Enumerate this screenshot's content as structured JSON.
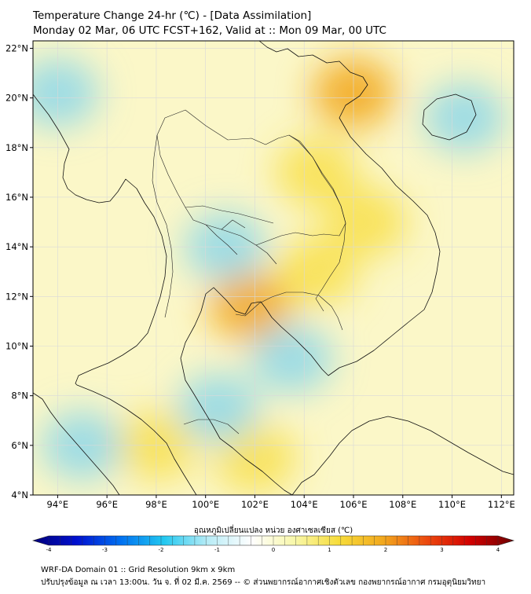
{
  "header": {
    "title": "Temperature Change 24-hr (℃) - [Data Assimilation]",
    "subtitle": "Monday 02 Mar, 06 UTC FCST+162, Valid at :: Mon 09 Mar, 00 UTC"
  },
  "map": {
    "lat_ticks": [
      "22°N",
      "20°N",
      "18°N",
      "16°N",
      "14°N",
      "12°N",
      "10°N",
      "8°N",
      "6°N",
      "4°N"
    ],
    "lon_ticks": [
      "94°E",
      "96°E",
      "98°E",
      "100°E",
      "102°E",
      "104°E",
      "106°E",
      "108°E",
      "110°E",
      "112°E"
    ],
    "lat_range": [
      4,
      22.3
    ],
    "lon_range": [
      93,
      112.5
    ],
    "grid": true,
    "colors": {
      "cool": "#7fd3ee",
      "warm": "#f7dc3a",
      "hot": "#f2a91e",
      "land_line": "#111111",
      "grid": "#d9d9d9"
    },
    "field": [
      {
        "lon": 106.0,
        "lat": 20.2,
        "kind": "hot"
      },
      {
        "lon": 104.5,
        "lat": 17.0,
        "kind": "warm"
      },
      {
        "lon": 106.5,
        "lat": 15.0,
        "kind": "warm"
      },
      {
        "lon": 104.5,
        "lat": 13.0,
        "kind": "warm"
      },
      {
        "lon": 101.8,
        "lat": 11.6,
        "kind": "hot"
      },
      {
        "lon": 98.0,
        "lat": 6.0,
        "kind": "warm"
      },
      {
        "lon": 102.0,
        "lat": 5.5,
        "kind": "warm"
      },
      {
        "lon": 100.8,
        "lat": 14.0,
        "kind": "cool"
      },
      {
        "lon": 103.5,
        "lat": 9.5,
        "kind": "cool"
      },
      {
        "lon": 100.5,
        "lat": 7.5,
        "kind": "cool"
      },
      {
        "lon": 110.5,
        "lat": 19.2,
        "kind": "cool"
      },
      {
        "lon": 94.0,
        "lat": 20.2,
        "kind": "cool"
      },
      {
        "lon": 95.0,
        "lat": 6.0,
        "kind": "cool"
      }
    ]
  },
  "colorbar": {
    "label": "อุณหภูมิเปลี่ยนแปลง หน่วย องศาเซลเซียส (℃)",
    "min": -4,
    "max": 4,
    "ticks": [
      "-4",
      "-3",
      "-2",
      "-1",
      "0",
      "1",
      "2",
      "3",
      "4"
    ],
    "stops": [
      "#00007a",
      "#0010d0",
      "#0070f0",
      "#22c8f0",
      "#b8ecf6",
      "#ffffff",
      "#f8f7a8",
      "#f7dc3a",
      "#f2a91e",
      "#ec4a0e",
      "#d20000",
      "#6e0000"
    ]
  },
  "footer": {
    "line1": "WRF-DA Domain 01 :: Grid Resolution 9km x 9km",
    "line2": "ปรับปรุงข้อมูล ณ เวลา 13:00น. วัน จ. ที่ 02 มี.ค. 2569 -- © ส่วนพยากรณ์อากาศเชิงตัวเลข กองพยากรณ์อากาศ กรมอุตุนิยมวิทยา"
  }
}
